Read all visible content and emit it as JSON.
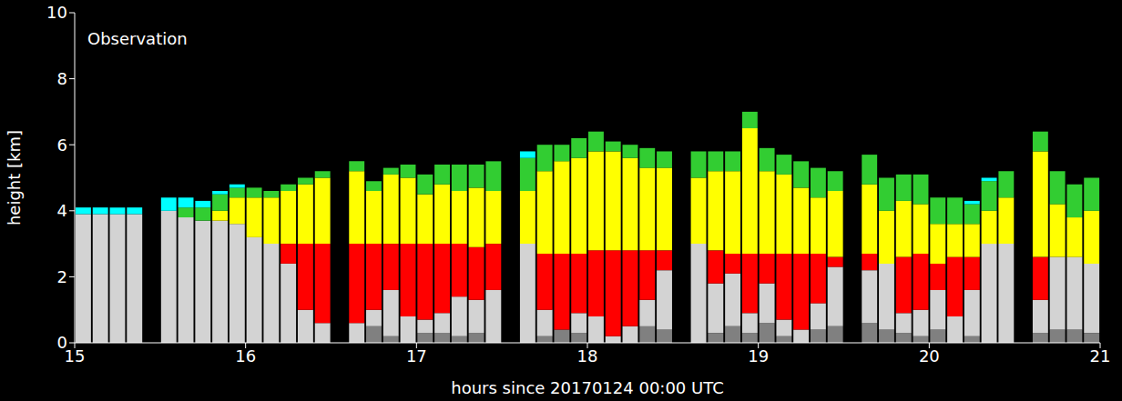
{
  "chart_data": {
    "type": "bar",
    "stacked": true,
    "title": "Observation",
    "x_label": "hours since 20170124 00:00 UTC",
    "y_label": "height [km]",
    "xlim": [
      15,
      21
    ],
    "xticks": [
      15,
      16,
      17,
      18,
      19,
      20,
      21
    ],
    "ylim": [
      0,
      10
    ],
    "yticks": [
      0,
      2,
      4,
      6,
      8,
      10
    ],
    "grid": false,
    "x": [
      15.05,
      15.15,
      15.25,
      15.35,
      15.45,
      15.55,
      15.65,
      15.75,
      15.85,
      15.95,
      16.05,
      16.15,
      16.25,
      16.35,
      16.45,
      16.55,
      16.65,
      16.75,
      16.85,
      16.95,
      17.05,
      17.15,
      17.25,
      17.35,
      17.45,
      17.55,
      17.65,
      17.75,
      17.85,
      17.95,
      18.05,
      18.15,
      18.25,
      18.35,
      18.45,
      18.55,
      18.65,
      18.75,
      18.85,
      18.95,
      19.05,
      19.15,
      19.25,
      19.35,
      19.45,
      19.55,
      19.65,
      19.75,
      19.85,
      19.95,
      20.05,
      20.15,
      20.25,
      20.35,
      20.45,
      20.55,
      20.65,
      20.75,
      20.85,
      20.95
    ],
    "series": [
      {
        "color": "#808080",
        "values": [
          0,
          0,
          0,
          0,
          null,
          0,
          0,
          0,
          0,
          0,
          0,
          0,
          0,
          0,
          0,
          null,
          0,
          0.5,
          0.2,
          0,
          0.3,
          0.3,
          0.2,
          0.3,
          0,
          null,
          0,
          0.2,
          0.4,
          0.3,
          0,
          0,
          0,
          0.5,
          0.4,
          null,
          0,
          0.3,
          0.5,
          0.3,
          0.6,
          0.2,
          0,
          0.4,
          0.5,
          null,
          0.6,
          0.4,
          0.3,
          0.2,
          0.4,
          0,
          0.2,
          0,
          0,
          null,
          0.3,
          0.4,
          0.4,
          0.3
        ]
      },
      {
        "color": "#d3d3d3",
        "values": [
          3.9,
          3.9,
          3.9,
          3.9,
          null,
          4.0,
          3.8,
          3.7,
          3.7,
          3.6,
          3.2,
          3.0,
          2.4,
          1.0,
          0.6,
          null,
          0.6,
          0.5,
          1.4,
          0.8,
          0.4,
          0.6,
          1.2,
          1.0,
          1.6,
          null,
          3.0,
          0.8,
          0,
          0.6,
          0.8,
          0.2,
          0.5,
          0.8,
          1.8,
          null,
          3.0,
          1.5,
          1.6,
          0.6,
          1.2,
          0.5,
          0.4,
          0.8,
          1.8,
          null,
          1.6,
          2.0,
          0.6,
          0.8,
          1.2,
          0.8,
          1.4,
          3.0,
          3.0,
          null,
          1.0,
          2.2,
          2.2,
          2.1
        ]
      },
      {
        "color": "#ff0000",
        "values": [
          0,
          0,
          0,
          0,
          null,
          0,
          0,
          0,
          0,
          0,
          0,
          0,
          0.6,
          2.0,
          2.4,
          null,
          2.4,
          2.0,
          1.4,
          2.2,
          2.3,
          2.1,
          1.6,
          1.6,
          1.4,
          null,
          0,
          1.7,
          2.3,
          1.8,
          2.0,
          2.6,
          2.3,
          1.5,
          0.6,
          null,
          0,
          1.0,
          0.6,
          1.8,
          0.9,
          2.0,
          2.3,
          1.5,
          0.3,
          null,
          0.5,
          0,
          1.7,
          1.7,
          0.8,
          1.8,
          1.0,
          0,
          0,
          null,
          1.3,
          0,
          0,
          0
        ]
      },
      {
        "color": "#ffff00",
        "values": [
          0,
          0,
          0,
          0,
          null,
          0,
          0,
          0,
          0.3,
          0.8,
          1.2,
          1.4,
          1.6,
          1.8,
          2.0,
          null,
          2.2,
          1.6,
          2.1,
          2.0,
          1.5,
          1.8,
          1.6,
          1.8,
          1.6,
          null,
          1.6,
          2.5,
          2.8,
          2.9,
          3.0,
          3.0,
          2.8,
          2.5,
          2.5,
          null,
          2.0,
          2.4,
          2.5,
          3.8,
          2.5,
          2.4,
          2.0,
          1.7,
          2.0,
          null,
          2.1,
          1.6,
          1.7,
          1.5,
          1.2,
          1.0,
          1.0,
          1.0,
          1.4,
          null,
          3.2,
          1.6,
          1.2,
          1.6
        ]
      },
      {
        "color": "#32cd32",
        "values": [
          0,
          0,
          0,
          0,
          null,
          0,
          0.3,
          0.4,
          0.5,
          0.3,
          0.3,
          0.2,
          0.2,
          0.2,
          0.2,
          null,
          0.3,
          0.3,
          0.2,
          0.4,
          0.6,
          0.6,
          0.8,
          0.7,
          0.9,
          null,
          1.0,
          0.8,
          0.5,
          0.6,
          0.6,
          0.3,
          0.4,
          0.6,
          0.5,
          null,
          0.8,
          0.6,
          0.6,
          0.5,
          0.7,
          0.6,
          0.8,
          0.9,
          0.6,
          null,
          0.9,
          1.0,
          0.8,
          0.9,
          0.8,
          0.8,
          0.6,
          0.9,
          0.8,
          null,
          0.6,
          1.0,
          1.0,
          1.0
        ]
      },
      {
        "color": "#00ffff",
        "values": [
          0.2,
          0.2,
          0.2,
          0.2,
          null,
          0.4,
          0.3,
          0.2,
          0.1,
          0.1,
          0,
          0,
          0,
          0,
          0,
          null,
          0,
          0,
          0,
          0,
          0,
          0,
          0,
          0,
          0,
          null,
          0.2,
          0,
          0,
          0,
          0,
          0,
          0,
          0,
          0,
          null,
          0,
          0,
          0,
          0,
          0,
          0,
          0,
          0,
          0,
          null,
          0,
          0,
          0,
          0,
          0,
          0,
          0.1,
          0.1,
          0,
          null,
          0,
          0,
          0,
          0
        ]
      }
    ]
  }
}
